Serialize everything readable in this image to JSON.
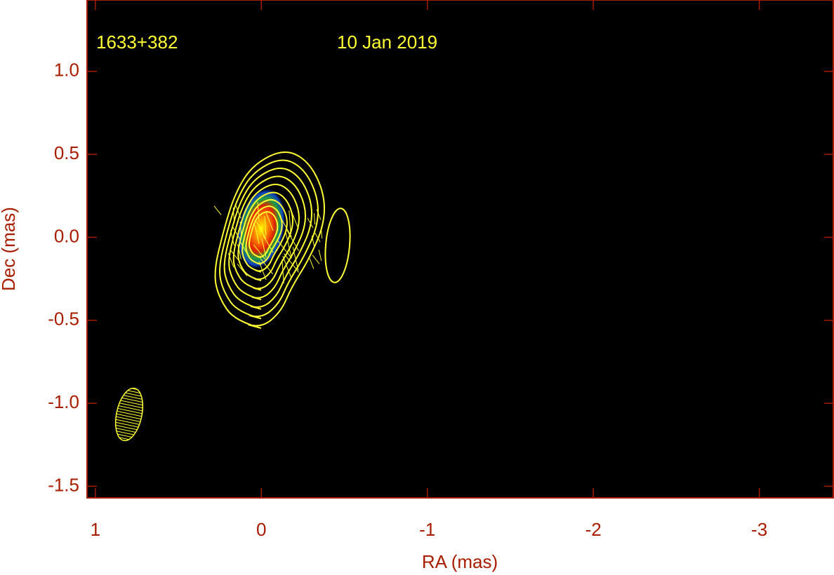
{
  "chart_data": {
    "type": "image",
    "title": "1633+382",
    "subtitle": "10 Jan 2019",
    "x_label": "RA (mas)",
    "y_label": "Dec (mas)",
    "xlim": [
      1.05,
      -3.45
    ],
    "ylim": [
      -1.57,
      1.43
    ],
    "xticks": [
      1,
      0,
      -1,
      -2,
      -3
    ],
    "yticks": [
      -1.5,
      {
        "value": -1,
        "label": "-1.0"
      },
      -0.5,
      {
        "value": 0,
        "label": "0.0"
      },
      0.5,
      {
        "value": 1,
        "label": "1.0"
      }
    ]
  }
}
